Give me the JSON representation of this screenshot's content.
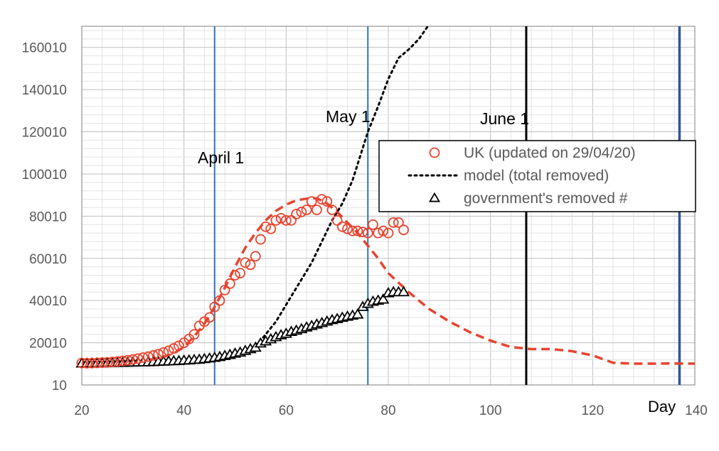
{
  "chart_data": {
    "type": "scatter",
    "xlabel": "Day",
    "ylabel": "",
    "xlim": [
      20,
      140
    ],
    "ylim": [
      10,
      170010
    ],
    "x_ticks": [
      "20",
      "40",
      "60",
      "80",
      "100",
      "120",
      "140"
    ],
    "y_ticks": [
      "10",
      "20010",
      "40010",
      "60010",
      "80010",
      "100010",
      "120010",
      "140010",
      "160010"
    ],
    "grid": true,
    "legend_position": "right",
    "vertical_lines": [
      {
        "x": 46,
        "label": "April 1",
        "color": "#2e75b6"
      },
      {
        "x": 76,
        "label": "May 1",
        "color": "#2e75b6"
      },
      {
        "x": 107,
        "label": "June 1",
        "color": "#000000"
      },
      {
        "x": 137,
        "label": "",
        "color": "#2f5597"
      }
    ],
    "series": [
      {
        "name": "UK (updated on 29/04/20)",
        "style": "circle",
        "color": "#e8432e",
        "points": [
          [
            20,
            10400
          ],
          [
            21,
            10300
          ],
          [
            22,
            10350
          ],
          [
            23,
            10500
          ],
          [
            24,
            10600
          ],
          [
            25,
            10700
          ],
          [
            26,
            10900
          ],
          [
            27,
            11100
          ],
          [
            28,
            11400
          ],
          [
            29,
            11700
          ],
          [
            30,
            12100
          ],
          [
            31,
            12500
          ],
          [
            32,
            13000
          ],
          [
            33,
            13400
          ],
          [
            34,
            14000
          ],
          [
            35,
            14600
          ],
          [
            36,
            15400
          ],
          [
            37,
            16200
          ],
          [
            38,
            17300
          ],
          [
            39,
            18600
          ],
          [
            40,
            20000
          ],
          [
            41,
            21800
          ],
          [
            42,
            24000
          ],
          [
            43,
            28000
          ],
          [
            44,
            30000
          ],
          [
            45,
            32000
          ],
          [
            46,
            37000
          ],
          [
            47,
            40000
          ],
          [
            48,
            45000
          ],
          [
            49,
            48000
          ],
          [
            50,
            52000
          ],
          [
            51,
            53000
          ],
          [
            52,
            58000
          ],
          [
            53,
            57000
          ],
          [
            54,
            61000
          ],
          [
            55,
            69000
          ],
          [
            56,
            75000
          ],
          [
            57,
            74000
          ],
          [
            58,
            78000
          ],
          [
            59,
            79000
          ],
          [
            60,
            78000
          ],
          [
            61,
            78000
          ],
          [
            62,
            81000
          ],
          [
            63,
            82000
          ],
          [
            64,
            83000
          ],
          [
            65,
            87000
          ],
          [
            66,
            83000
          ],
          [
            67,
            88000
          ],
          [
            68,
            87000
          ],
          [
            69,
            83000
          ],
          [
            70,
            78000
          ],
          [
            71,
            75000
          ],
          [
            72,
            74000
          ],
          [
            73,
            73000
          ],
          [
            74,
            73000
          ],
          [
            75,
            72500
          ],
          [
            76,
            72000
          ],
          [
            77,
            76000
          ],
          [
            78,
            72000
          ],
          [
            79,
            73000
          ],
          [
            80,
            72000
          ],
          [
            81,
            77000
          ],
          [
            82,
            77000
          ],
          [
            83,
            73500
          ]
        ]
      },
      {
        "name": "model (total removed)",
        "style": "dotted",
        "color": "#000000",
        "points": [
          [
            20,
            10010
          ],
          [
            30,
            10300
          ],
          [
            40,
            11500
          ],
          [
            45,
            12500
          ],
          [
            50,
            14500
          ],
          [
            53,
            16500
          ],
          [
            55,
            21000
          ],
          [
            58,
            30000
          ],
          [
            60,
            38000
          ],
          [
            63,
            50000
          ],
          [
            65,
            58000
          ],
          [
            67,
            68000
          ],
          [
            69,
            78000
          ],
          [
            71,
            86000
          ],
          [
            73,
            97000
          ],
          [
            76,
            120000
          ],
          [
            78,
            132000
          ],
          [
            80,
            145000
          ],
          [
            82,
            155000
          ],
          [
            84,
            159000
          ],
          [
            86,
            164000
          ],
          [
            88,
            171000
          ],
          [
            90,
            176000
          ]
        ]
      },
      {
        "name": "government's removed #",
        "style": "triangle",
        "color": "#000000",
        "points": [
          [
            20,
            10200
          ],
          [
            21,
            10200
          ],
          [
            22,
            10250
          ],
          [
            23,
            10300
          ],
          [
            24,
            10300
          ],
          [
            25,
            10350
          ],
          [
            26,
            10400
          ],
          [
            27,
            10450
          ],
          [
            28,
            10500
          ],
          [
            29,
            10600
          ],
          [
            30,
            10650
          ],
          [
            31,
            10700
          ],
          [
            32,
            10750
          ],
          [
            33,
            10800
          ],
          [
            34,
            10900
          ],
          [
            35,
            11000
          ],
          [
            36,
            11100
          ],
          [
            37,
            11200
          ],
          [
            38,
            11300
          ],
          [
            39,
            11400
          ],
          [
            40,
            11600
          ],
          [
            41,
            11700
          ],
          [
            42,
            11900
          ],
          [
            43,
            12000
          ],
          [
            44,
            12300
          ],
          [
            45,
            12600
          ],
          [
            46,
            12900
          ],
          [
            47,
            13300
          ],
          [
            48,
            13800
          ],
          [
            49,
            14300
          ],
          [
            50,
            14900
          ],
          [
            51,
            15400
          ],
          [
            52,
            16200
          ],
          [
            53,
            17000
          ],
          [
            54,
            17700
          ],
          [
            55,
            19700
          ],
          [
            56,
            20700
          ],
          [
            57,
            21700
          ],
          [
            58,
            22700
          ],
          [
            59,
            23600
          ],
          [
            60,
            24300
          ],
          [
            61,
            25200
          ],
          [
            62,
            25800
          ],
          [
            63,
            26500
          ],
          [
            64,
            27300
          ],
          [
            65,
            28000
          ],
          [
            66,
            28700
          ],
          [
            67,
            29400
          ],
          [
            68,
            30100
          ],
          [
            69,
            30800
          ],
          [
            70,
            31300
          ],
          [
            71,
            31900
          ],
          [
            72,
            32400
          ],
          [
            73,
            32900
          ],
          [
            74,
            33400
          ],
          [
            75,
            37000
          ],
          [
            76,
            38500
          ],
          [
            77,
            39500
          ],
          [
            78,
            40000
          ],
          [
            79,
            40500
          ],
          [
            80,
            43500
          ],
          [
            81,
            44000
          ],
          [
            82,
            44000
          ],
          [
            83,
            44000
          ]
        ]
      },
      {
        "name": "",
        "style": "dashed",
        "color": "#e8432e",
        "points": [
          [
            20,
            10100
          ],
          [
            30,
            10800
          ],
          [
            35,
            12500
          ],
          [
            38,
            15000
          ],
          [
            40,
            18000
          ],
          [
            42,
            23000
          ],
          [
            44,
            29000
          ],
          [
            46,
            37000
          ],
          [
            48,
            46000
          ],
          [
            50,
            56000
          ],
          [
            52,
            65000
          ],
          [
            54,
            72000
          ],
          [
            56,
            78000
          ],
          [
            58,
            82500
          ],
          [
            60,
            85500
          ],
          [
            62,
            87500
          ],
          [
            64,
            88300
          ],
          [
            66,
            88500
          ],
          [
            68,
            86000
          ],
          [
            70,
            82000
          ],
          [
            72,
            77000
          ],
          [
            74,
            72000
          ],
          [
            76,
            66000
          ],
          [
            78,
            60000
          ],
          [
            80,
            53000
          ],
          [
            84,
            44000
          ],
          [
            88,
            36000
          ],
          [
            92,
            30000
          ],
          [
            96,
            25000
          ],
          [
            100,
            21000
          ],
          [
            104,
            18000
          ],
          [
            108,
            17000
          ],
          [
            112,
            17000
          ],
          [
            116,
            16000
          ],
          [
            120,
            14000
          ],
          [
            124,
            10500
          ],
          [
            128,
            10100
          ],
          [
            132,
            10100
          ],
          [
            136,
            10200
          ],
          [
            140,
            10100
          ]
        ]
      }
    ]
  }
}
